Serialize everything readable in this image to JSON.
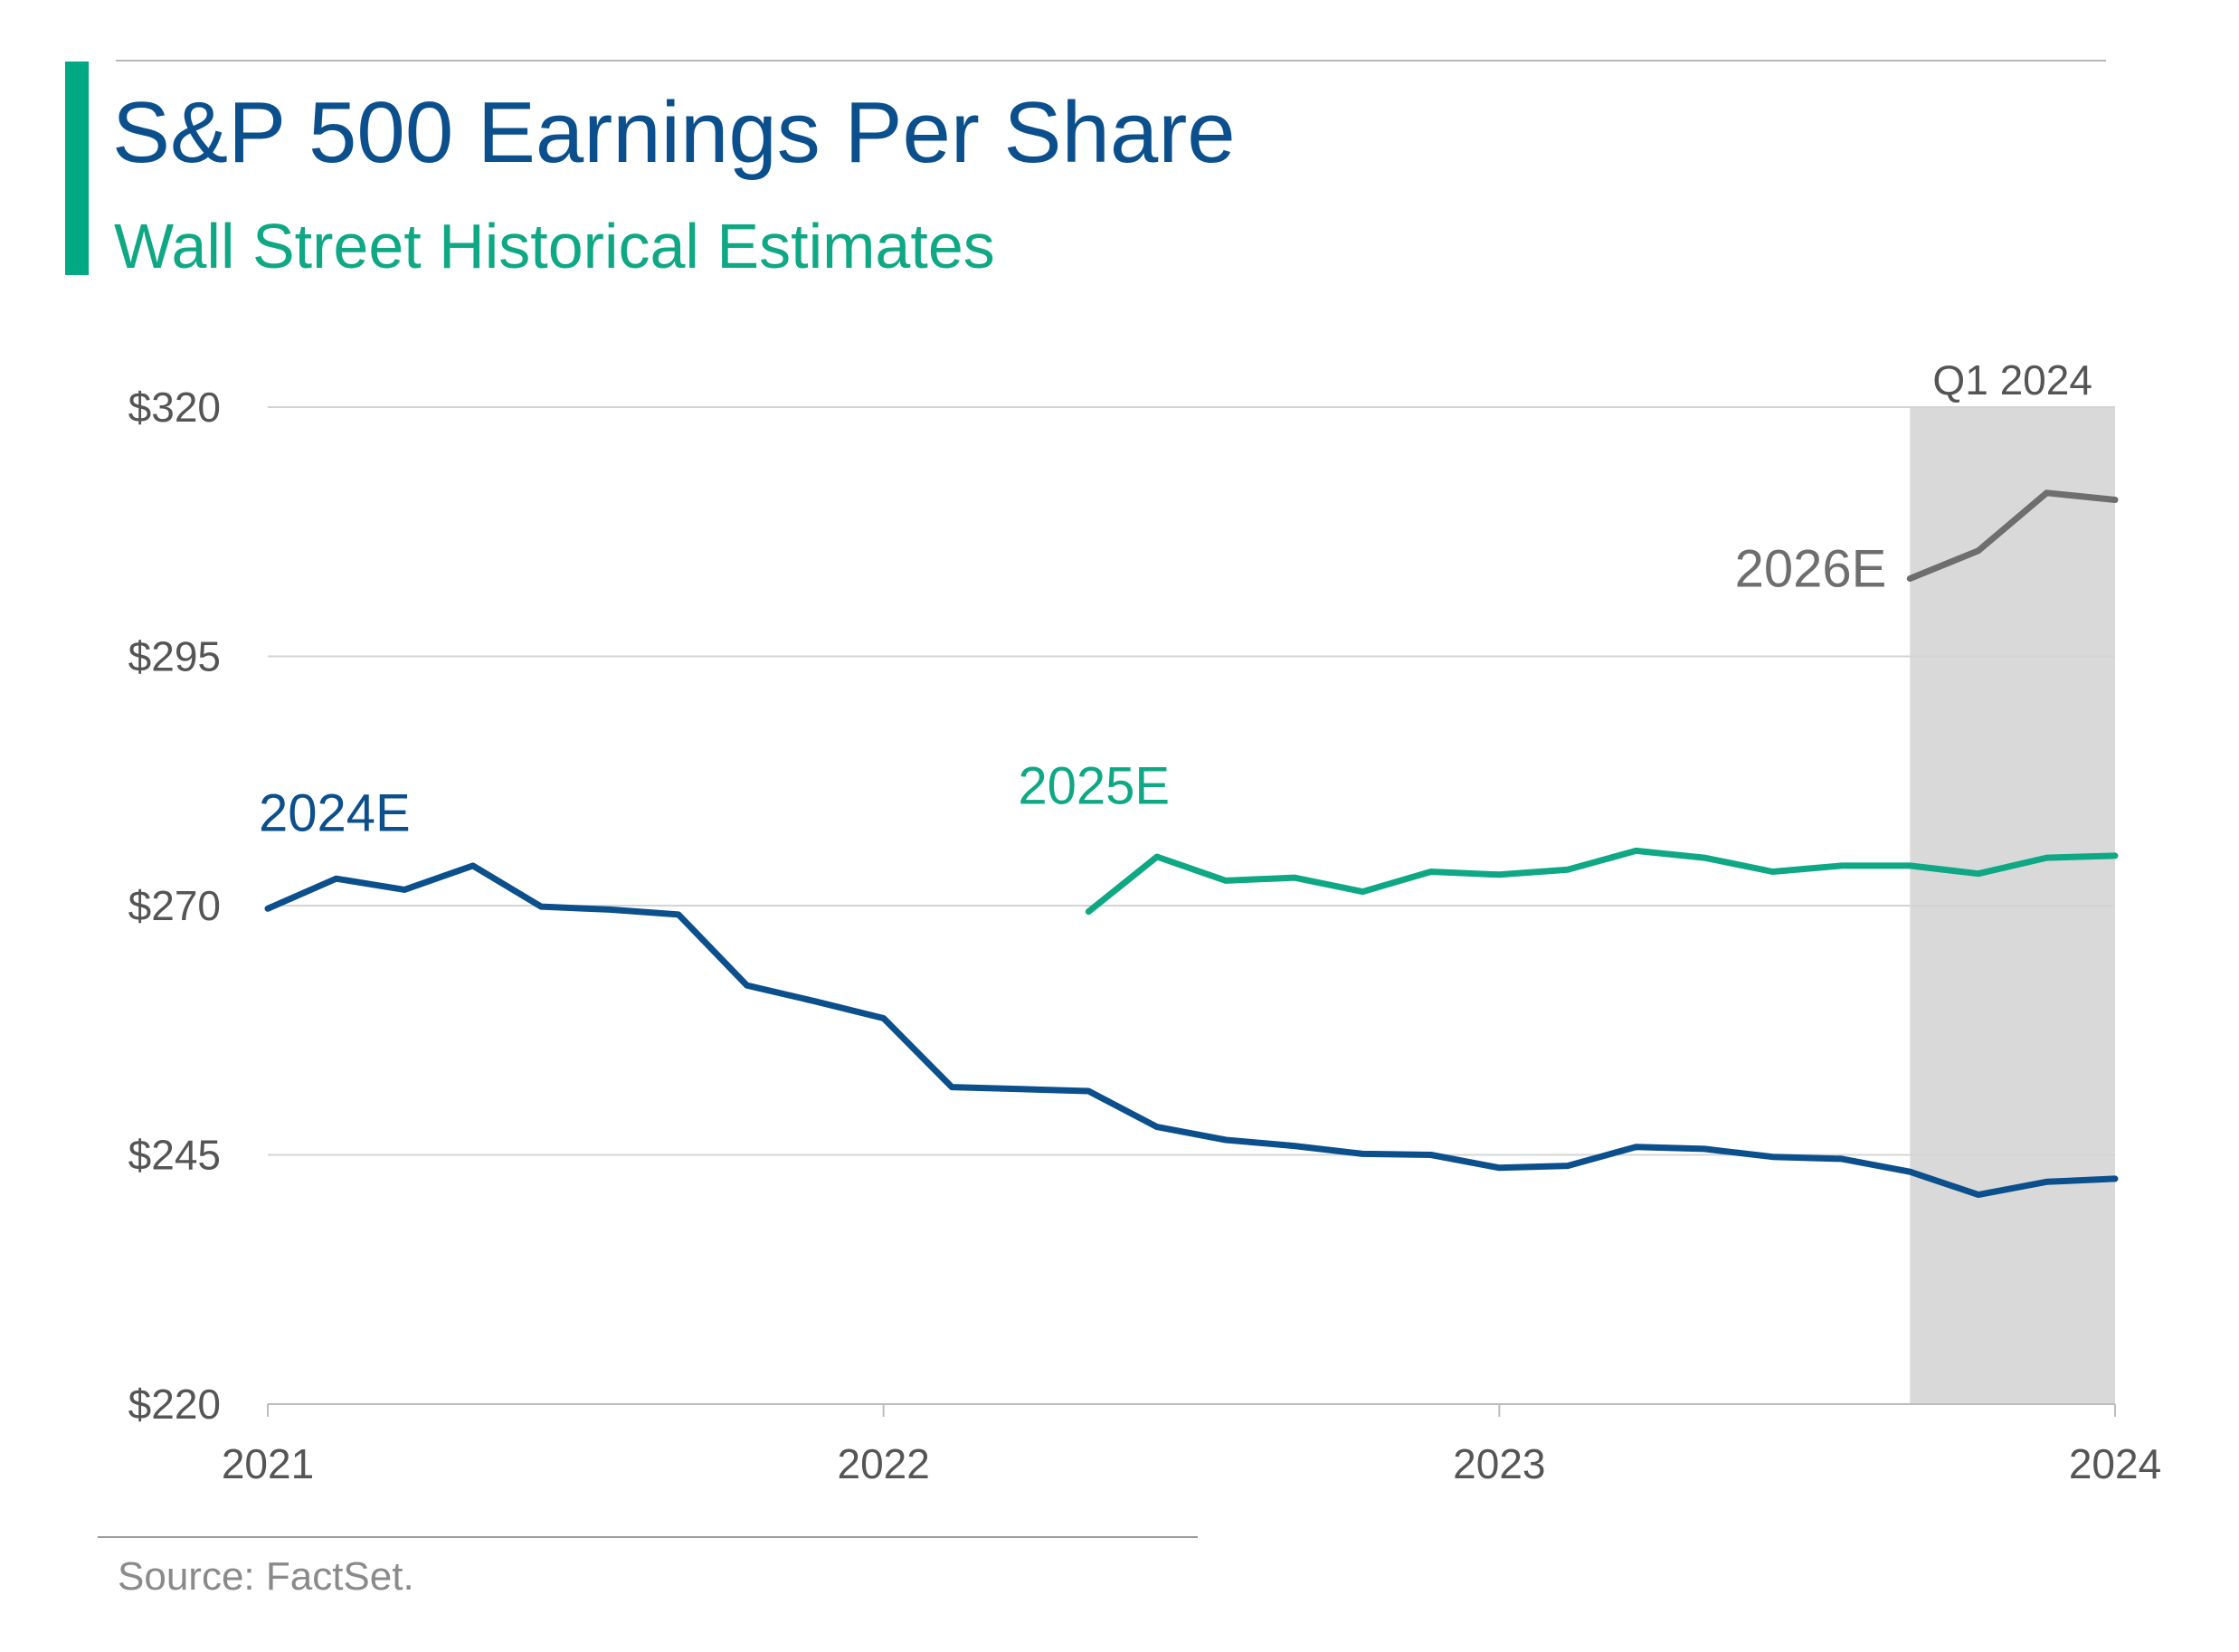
{
  "header": {
    "title": "S&P 500 Earnings Per Share",
    "subtitle": "Wall Street Historical Estimates"
  },
  "footer": {
    "source": "Source: FactSet."
  },
  "colors": {
    "title": "#0b4f8c",
    "accent": "#00a884",
    "series_2024E": "#0b4f8c",
    "series_2025E": "#0fa884",
    "series_2026E": "#6e6e6e",
    "highlight_band": "#d9d9d9",
    "grid": "#d4d4d4",
    "tick_text": "#555555"
  },
  "chart_data": {
    "type": "line",
    "title": "S&P 500 Earnings Per Share",
    "subtitle": "Wall Street Historical Estimates",
    "xlabel": "",
    "ylabel": "",
    "xlim": [
      2021.0,
      2024.0
    ],
    "ylim": [
      220,
      320
    ],
    "y_ticks": [
      220,
      245,
      270,
      295,
      320
    ],
    "y_tick_labels": [
      "$220",
      "$245",
      "$270",
      "$295",
      "$320"
    ],
    "x_ticks": [
      2021,
      2022,
      2023,
      2024
    ],
    "x_tick_labels": [
      "2021",
      "2022",
      "2023",
      "2024"
    ],
    "grid": "horizontal",
    "legend": "inline labels",
    "highlight": {
      "label": "Q1 2024",
      "x_start": 2023.667,
      "x_end": 2024.0
    },
    "series": [
      {
        "name": "2024E",
        "points": [
          [
            2021.0,
            269.7
          ],
          [
            2021.111,
            272.7
          ],
          [
            2021.222,
            271.6
          ],
          [
            2021.333,
            274.0
          ],
          [
            2021.444,
            269.9
          ],
          [
            2021.556,
            269.6
          ],
          [
            2021.667,
            269.1
          ],
          [
            2021.778,
            262.0
          ],
          [
            2021.889,
            260.4
          ],
          [
            2022.0,
            258.7
          ],
          [
            2022.111,
            251.8
          ],
          [
            2022.222,
            251.6
          ],
          [
            2022.333,
            251.4
          ],
          [
            2022.444,
            247.8
          ],
          [
            2022.556,
            246.5
          ],
          [
            2022.667,
            245.9
          ],
          [
            2022.778,
            245.1
          ],
          [
            2022.889,
            245.0
          ],
          [
            2023.0,
            243.7
          ],
          [
            2023.111,
            243.9
          ],
          [
            2023.222,
            245.8
          ],
          [
            2023.333,
            245.6
          ],
          [
            2023.444,
            244.8
          ],
          [
            2023.556,
            244.6
          ],
          [
            2023.667,
            243.3
          ],
          [
            2023.778,
            241.0
          ],
          [
            2023.889,
            242.3
          ],
          [
            2024.0,
            242.6
          ]
        ]
      },
      {
        "name": "2025E",
        "points": [
          [
            2022.333,
            269.4
          ],
          [
            2022.444,
            274.9
          ],
          [
            2022.556,
            272.5
          ],
          [
            2022.667,
            272.8
          ],
          [
            2022.778,
            271.4
          ],
          [
            2022.889,
            273.4
          ],
          [
            2023.0,
            273.1
          ],
          [
            2023.111,
            273.6
          ],
          [
            2023.222,
            275.5
          ],
          [
            2023.333,
            274.8
          ],
          [
            2023.444,
            273.4
          ],
          [
            2023.556,
            274.0
          ],
          [
            2023.667,
            274.0
          ],
          [
            2023.778,
            273.2
          ],
          [
            2023.889,
            274.8
          ],
          [
            2024.0,
            275.0
          ]
        ]
      },
      {
        "name": "2026E",
        "points": [
          [
            2023.667,
            302.8
          ],
          [
            2023.778,
            305.6
          ],
          [
            2023.889,
            311.4
          ],
          [
            2024.0,
            310.7
          ]
        ]
      }
    ]
  }
}
